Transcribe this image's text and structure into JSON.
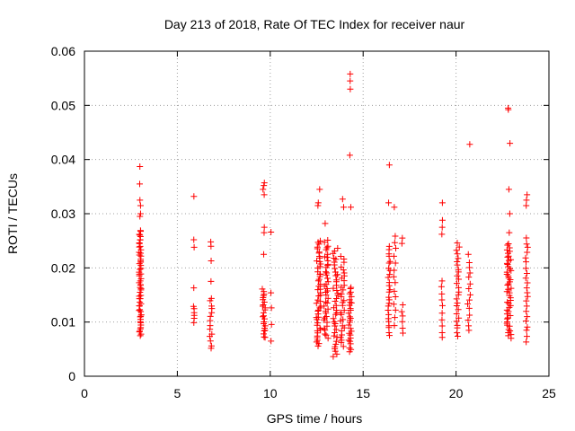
{
  "chart_data": {
    "type": "scatter",
    "title": "Day 213 of 2018, Rate Of TEC Index for receiver naur",
    "xlabel": "GPS time / hours",
    "ylabel": "ROTI / TECUs",
    "xlim": [
      0,
      25
    ],
    "ylim": [
      0,
      0.06
    ],
    "xticks": [
      0,
      5,
      10,
      15,
      20,
      25
    ],
    "yticks": [
      0,
      0.01,
      0.02,
      0.03,
      0.04,
      0.05,
      0.06
    ],
    "xtick_labels": [
      "0",
      "5",
      "10",
      "15",
      "20",
      "25"
    ],
    "ytick_labels": [
      "0",
      "0.01",
      "0.02",
      "0.03",
      "0.04",
      "0.05",
      "0.06"
    ],
    "grid": true,
    "marker": "+",
    "color": "#ff0000",
    "clusters": [
      {
        "x": 3.0,
        "spread": 0.06,
        "ymin": 0.0075,
        "ymax": 0.027,
        "n": 60,
        "extra": [
          0.0295,
          0.03,
          0.0315,
          0.0325,
          0.0355,
          0.0387
        ]
      },
      {
        "x": 5.9,
        "spread": 0.03,
        "ymin": 0.01,
        "ymax": 0.013,
        "n": 6,
        "extra": [
          0.0163,
          0.0238,
          0.0252,
          0.0332
        ]
      },
      {
        "x": 6.8,
        "spread": 0.06,
        "ymin": 0.005,
        "ymax": 0.0145,
        "n": 14,
        "extra": [
          0.0175,
          0.0213,
          0.024,
          0.0248
        ]
      },
      {
        "x": 9.65,
        "spread": 0.08,
        "ymin": 0.007,
        "ymax": 0.016,
        "n": 24,
        "extra": [
          0.0225,
          0.0265,
          0.0275,
          0.0335,
          0.0345,
          0.0352,
          0.0357
        ]
      },
      {
        "x": 10.05,
        "spread": 0.02,
        "ymin": 0.0065,
        "ymax": 0.0155,
        "n": 4,
        "extra": [
          0.0266
        ]
      },
      {
        "x": 12.6,
        "spread": 0.12,
        "ymin": 0.0055,
        "ymax": 0.025,
        "n": 50,
        "extra": [
          0.0315,
          0.032,
          0.0345
        ]
      },
      {
        "x": 13.0,
        "spread": 0.12,
        "ymin": 0.007,
        "ymax": 0.025,
        "n": 40,
        "extra": [
          0.0282
        ]
      },
      {
        "x": 13.5,
        "spread": 0.14,
        "ymin": 0.0035,
        "ymax": 0.0235,
        "n": 40,
        "extra": []
      },
      {
        "x": 13.9,
        "spread": 0.12,
        "ymin": 0.0055,
        "ymax": 0.022,
        "n": 30,
        "extra": [
          0.0312,
          0.0327
        ]
      },
      {
        "x": 14.3,
        "spread": 0.08,
        "ymin": 0.0045,
        "ymax": 0.0165,
        "n": 28,
        "extra": [
          0.0312,
          0.0408,
          0.053,
          0.0545,
          0.0558
        ]
      },
      {
        "x": 16.4,
        "spread": 0.06,
        "ymin": 0.0075,
        "ymax": 0.024,
        "n": 26,
        "extra": [
          0.032,
          0.039
        ]
      },
      {
        "x": 16.7,
        "spread": 0.06,
        "ymin": 0.0095,
        "ymax": 0.026,
        "n": 14,
        "extra": [
          0.0312
        ]
      },
      {
        "x": 17.1,
        "spread": 0.04,
        "ymin": 0.008,
        "ymax": 0.013,
        "n": 6,
        "extra": [
          0.0245,
          0.0255
        ]
      },
      {
        "x": 19.25,
        "spread": 0.04,
        "ymin": 0.007,
        "ymax": 0.0175,
        "n": 10,
        "extra": [
          0.0262,
          0.0275,
          0.0288,
          0.032
        ]
      },
      {
        "x": 20.1,
        "spread": 0.08,
        "ymin": 0.0075,
        "ymax": 0.0245,
        "n": 26,
        "extra": []
      },
      {
        "x": 20.7,
        "spread": 0.09,
        "ymin": 0.0085,
        "ymax": 0.021,
        "n": 14,
        "extra": [
          0.0225,
          0.0428
        ]
      },
      {
        "x": 22.85,
        "spread": 0.12,
        "ymin": 0.007,
        "ymax": 0.0245,
        "n": 50,
        "extra": [
          0.0265,
          0.03,
          0.0345,
          0.043,
          0.0492,
          0.0495
        ]
      },
      {
        "x": 23.8,
        "spread": 0.06,
        "ymin": 0.0065,
        "ymax": 0.0255,
        "n": 22,
        "extra": [
          0.0315,
          0.0325,
          0.0335
        ]
      }
    ]
  }
}
